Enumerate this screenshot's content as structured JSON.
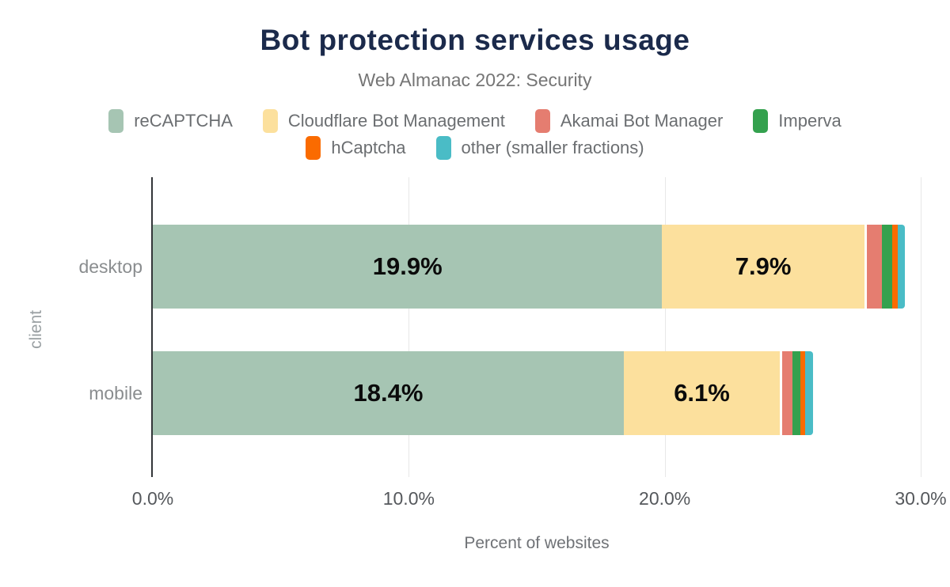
{
  "figure": {
    "title": "Bot protection services usage",
    "subtitle": "Web Almanac 2022: Security"
  },
  "chart_data": {
    "type": "bar",
    "stacked": true,
    "orientation": "horizontal",
    "title": "Bot protection services usage",
    "subtitle": "Web Almanac 2022: Security",
    "categories": [
      "desktop",
      "mobile"
    ],
    "series": [
      {
        "name": "reCAPTCHA",
        "color": "#a6c5b3",
        "values": [
          19.9,
          18.4
        ]
      },
      {
        "name": "Cloudflare Bot Management",
        "color": "#fce09d",
        "values": [
          7.9,
          6.1
        ]
      },
      {
        "name": "Akamai Bot Manager",
        "color": "#e57d70",
        "values": [
          0.6,
          0.4
        ]
      },
      {
        "name": "Imperva",
        "color": "#34a14e",
        "values": [
          0.4,
          0.3
        ]
      },
      {
        "name": "hCaptcha",
        "color": "#fa6b00",
        "values": [
          0.2,
          0.2
        ]
      },
      {
        "name": "other (smaller fractions)",
        "color": "#4abcc6",
        "values": [
          0.3,
          0.3
        ]
      }
    ],
    "xlabel": "Percent of websites",
    "ylabel": "client",
    "xlim": [
      0,
      30
    ],
    "x_ticks": [
      "0.0%",
      "10.0%",
      "20.0%",
      "30.0%"
    ],
    "grid": true,
    "legend_position": "top",
    "value_labels": {
      "show_threshold": 1,
      "visible_labels": [
        "19.9%",
        "7.9%",
        "18.4%",
        "6.1%"
      ]
    }
  },
  "colors": {
    "title": "#1b2a4b",
    "subtitle": "#757575",
    "legend_text": "#6b6e71",
    "category_text": "#8a8d8f",
    "tick_text": "#55585c",
    "gridline": "#e8e8e8",
    "axis_line": "#333639",
    "value_text": "#0b0b0b",
    "background": "#ffffff"
  }
}
